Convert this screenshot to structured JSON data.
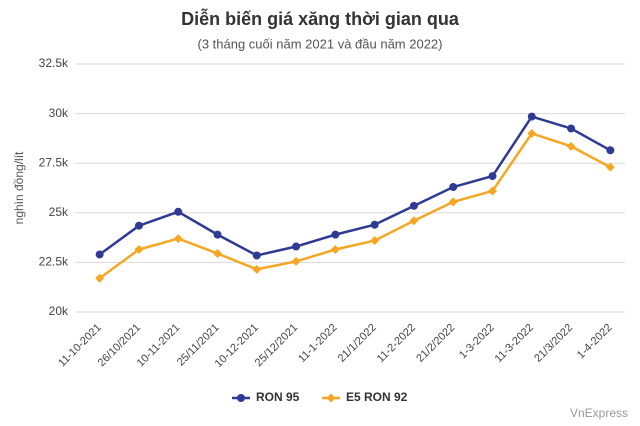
{
  "chart_data": {
    "type": "line",
    "title": "Diễn biến giá xăng thời gian qua",
    "subtitle": "(3 tháng cuối năm 2021 và đầu năm 2022)",
    "y_label": "nghìn đồng/lít",
    "source": "VnExpress",
    "categories": [
      "11-10-2021",
      "26/10/2021",
      "10-11-2021",
      "25/11/2021",
      "10-12-2021",
      "25/12/2021",
      "11-1-2022",
      "21/1/2022",
      "11-2-2022",
      "21/2/2022",
      "1-3-2022",
      "11-3-2022",
      "21/3/2022",
      "1-4-2022"
    ],
    "series": [
      {
        "name": "RON 95",
        "color": "#2e3a93",
        "marker": "circle",
        "values": [
          22900,
          24350,
          25050,
          23900,
          22850,
          23300,
          23900,
          24400,
          25350,
          26300,
          26850,
          29850,
          29250,
          28150
        ]
      },
      {
        "name": "E5 RON 92",
        "color": "#f5a623",
        "marker": "diamond",
        "values": [
          21700,
          23150,
          23700,
          22950,
          22150,
          22550,
          23150,
          23600,
          24600,
          25550,
          26100,
          29000,
          28350,
          27300
        ]
      }
    ],
    "ylim": [
      20000,
      32500
    ],
    "yticks": [
      {
        "value": 20000,
        "label": "20k"
      },
      {
        "value": 22500,
        "label": "22.5k"
      },
      {
        "value": 25000,
        "label": "25k"
      },
      {
        "value": 27500,
        "label": "27.5k"
      },
      {
        "value": 30000,
        "label": "30k"
      },
      {
        "value": 32500,
        "label": "32.5k"
      }
    ],
    "grid": true
  }
}
